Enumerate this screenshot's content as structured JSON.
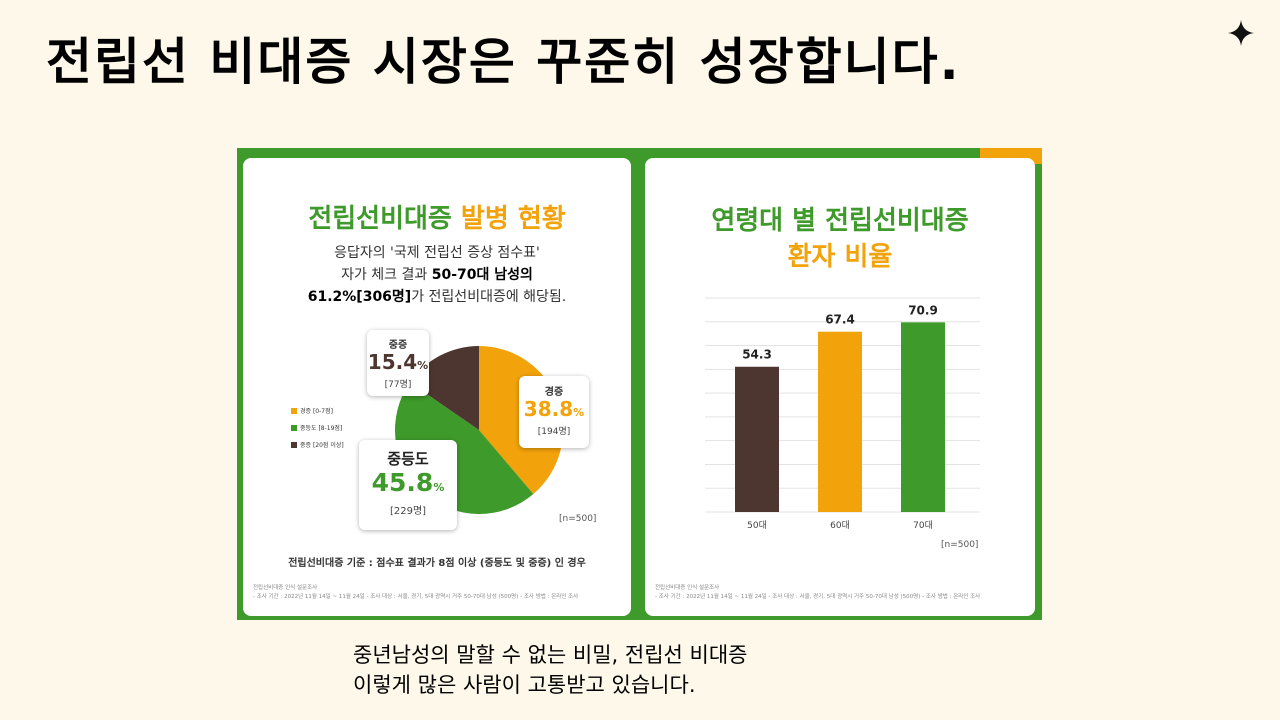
{
  "slide": {
    "title": "전립선 비대증 시장은 꾸준히 성장합니다.",
    "caption_line1": "중년남성의 말할 수 없는 비밀, 전립선 비대증",
    "caption_line2": "이렇게 많은 사람이 고통받고 있습니다."
  },
  "left_panel": {
    "title_part1": "전립선비대증",
    "title_part2": "발병 현황",
    "desc_line1": "응답자의 '국제 전립선 증상 점수표'",
    "desc_line2a": "자가 체크 결과 ",
    "desc_line2b": "50-70대 남성의",
    "desc_line3a": "61.2%[306명]",
    "desc_line3b": "가 전립선비대증에 해당됨.",
    "criteria": "전립선비대증 기준 : 점수표 결과가 8점 이상 (중등도 및 중증) 인 경우",
    "sample_note": "[n=500]",
    "footnote1": "전립선비대증 인식 설문조사",
    "footnote2": "- 조사 기간 : 2022년 11월 14일 ~ 11월 24일 - 조사 대상 : 서울, 경기, 5대 광역시 거주 50-70대 남성 (500명) - 조사 방법 : 온라인 조사"
  },
  "right_panel": {
    "title_line1": "연령대 별 전립선비대증",
    "title_line2": "환자 비율",
    "sample_note": "[n=500]",
    "footnote1": "전립선비대증 인식 설문조사",
    "footnote2": "- 조사 기간 : 2022년 11월 14일 ~ 11월 24일 - 조사 대상 : 서울, 경기, 5대 광역시 거주 50-70대 남성 (500명) - 조사 방법 : 온라인 조사"
  },
  "colors": {
    "green": "#3e9a2a",
    "orange": "#f2a20a",
    "brown": "#4e3630"
  },
  "chart_data": [
    {
      "type": "pie",
      "title": "전립선비대증 발병 현황",
      "slices": [
        {
          "name": "경증",
          "pct_text": "38.8",
          "count_text": "[194명]",
          "legend": "경증 [0-7점]",
          "value": 38.8,
          "color": "#f2a20a"
        },
        {
          "name": "중등도",
          "pct_text": "45.8",
          "count_text": "[229명]",
          "legend": "중등도 [8-19점]",
          "value": 45.8,
          "color": "#3e9a2a"
        },
        {
          "name": "중증",
          "pct_text": "15.4",
          "count_text": "[77명]",
          "legend": "중증 [20점 이상]",
          "value": 15.4,
          "color": "#4e3630"
        }
      ],
      "legend_position": "left"
    },
    {
      "type": "bar",
      "title": "연령대 별 전립선비대증 환자 비율",
      "categories": [
        "50대",
        "60대",
        "70대"
      ],
      "values": [
        54.3,
        67.4,
        70.9
      ],
      "value_labels": [
        "54.3",
        "67.4",
        "70.9"
      ],
      "colors": [
        "#4e3630",
        "#f2a20a",
        "#3e9a2a"
      ],
      "ylim": [
        0,
        80
      ],
      "grid": true
    }
  ]
}
